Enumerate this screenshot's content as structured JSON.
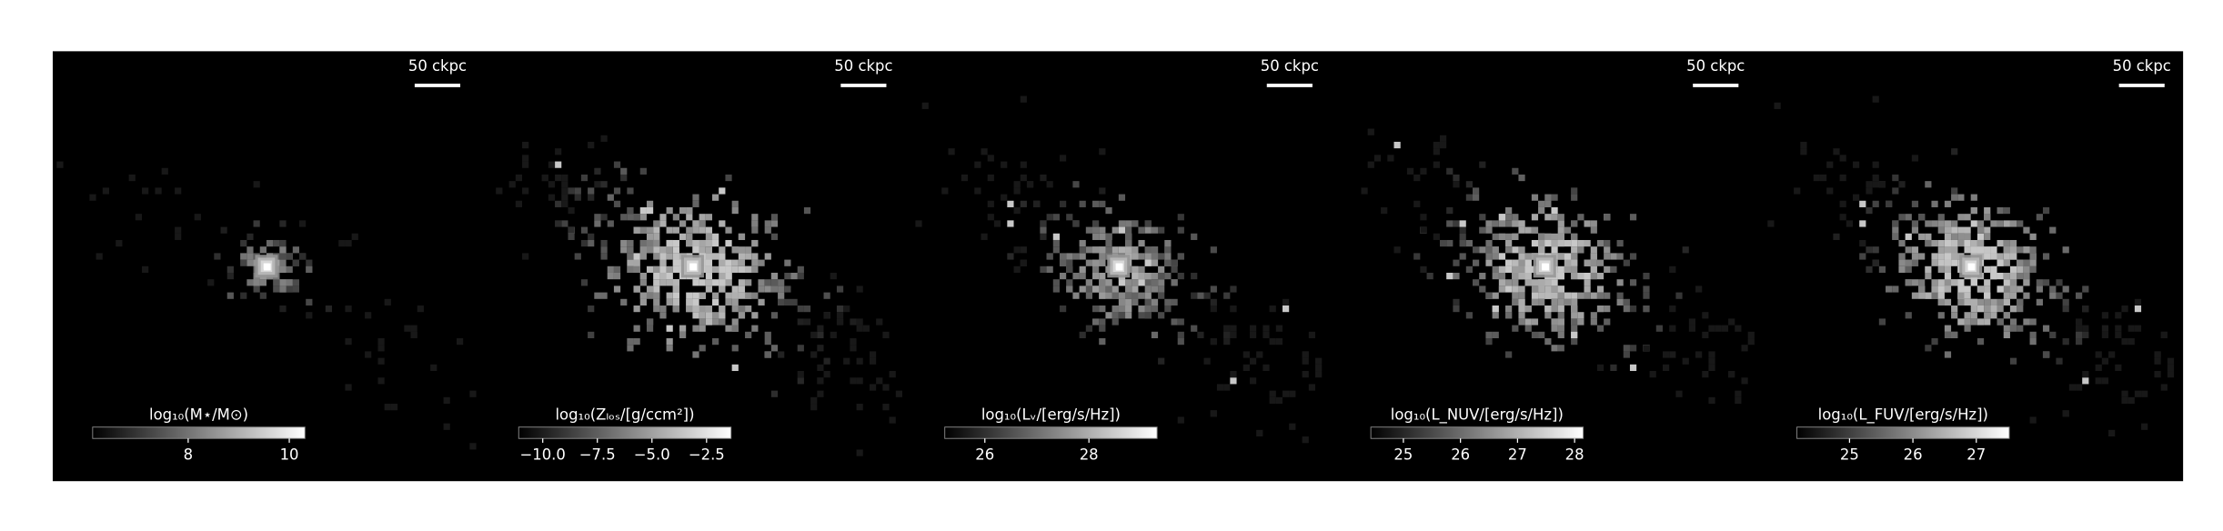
{
  "chart_data": [
    {
      "type": "image",
      "scale_bar": "50 ckpc",
      "colorbar_label": "log₁₀(M⋆/M⊙)",
      "clim": [
        6.11,
        10.31
      ],
      "cticks": [
        8,
        10
      ]
    },
    {
      "type": "image",
      "scale_bar": "50 ckpc",
      "colorbar_label": "log₁₀(Zₗₒₛ/[g/ccm²])",
      "clim": [
        -11.1,
        -1.38
      ],
      "cticks": [
        {
          "value": -10,
          "label": "−10.0"
        },
        {
          "value": -7.5,
          "label": "−7.5"
        },
        {
          "value": -5,
          "label": "−5.0"
        },
        {
          "value": -2.5,
          "label": "−2.5"
        }
      ]
    },
    {
      "type": "image",
      "scale_bar": "50 ckpc",
      "colorbar_label": "log₁₀(Lᵥ/[erg/s/Hz])",
      "clim": [
        25.23,
        29.31
      ],
      "cticks": [
        26,
        28
      ]
    },
    {
      "type": "image",
      "scale_bar": "50 ckpc",
      "colorbar_label": "log₁₀(L_NUV/[erg/s/Hz])",
      "clim": [
        24.43,
        28.15
      ],
      "cticks": [
        25,
        26,
        27,
        28
      ]
    },
    {
      "type": "image",
      "scale_bar": "50 ckpc",
      "colorbar_label": "log₁₀(L_FUV/[erg/s/Hz])",
      "clim": [
        24.17,
        27.52
      ],
      "cticks": [
        25,
        26,
        27
      ]
    }
  ]
}
